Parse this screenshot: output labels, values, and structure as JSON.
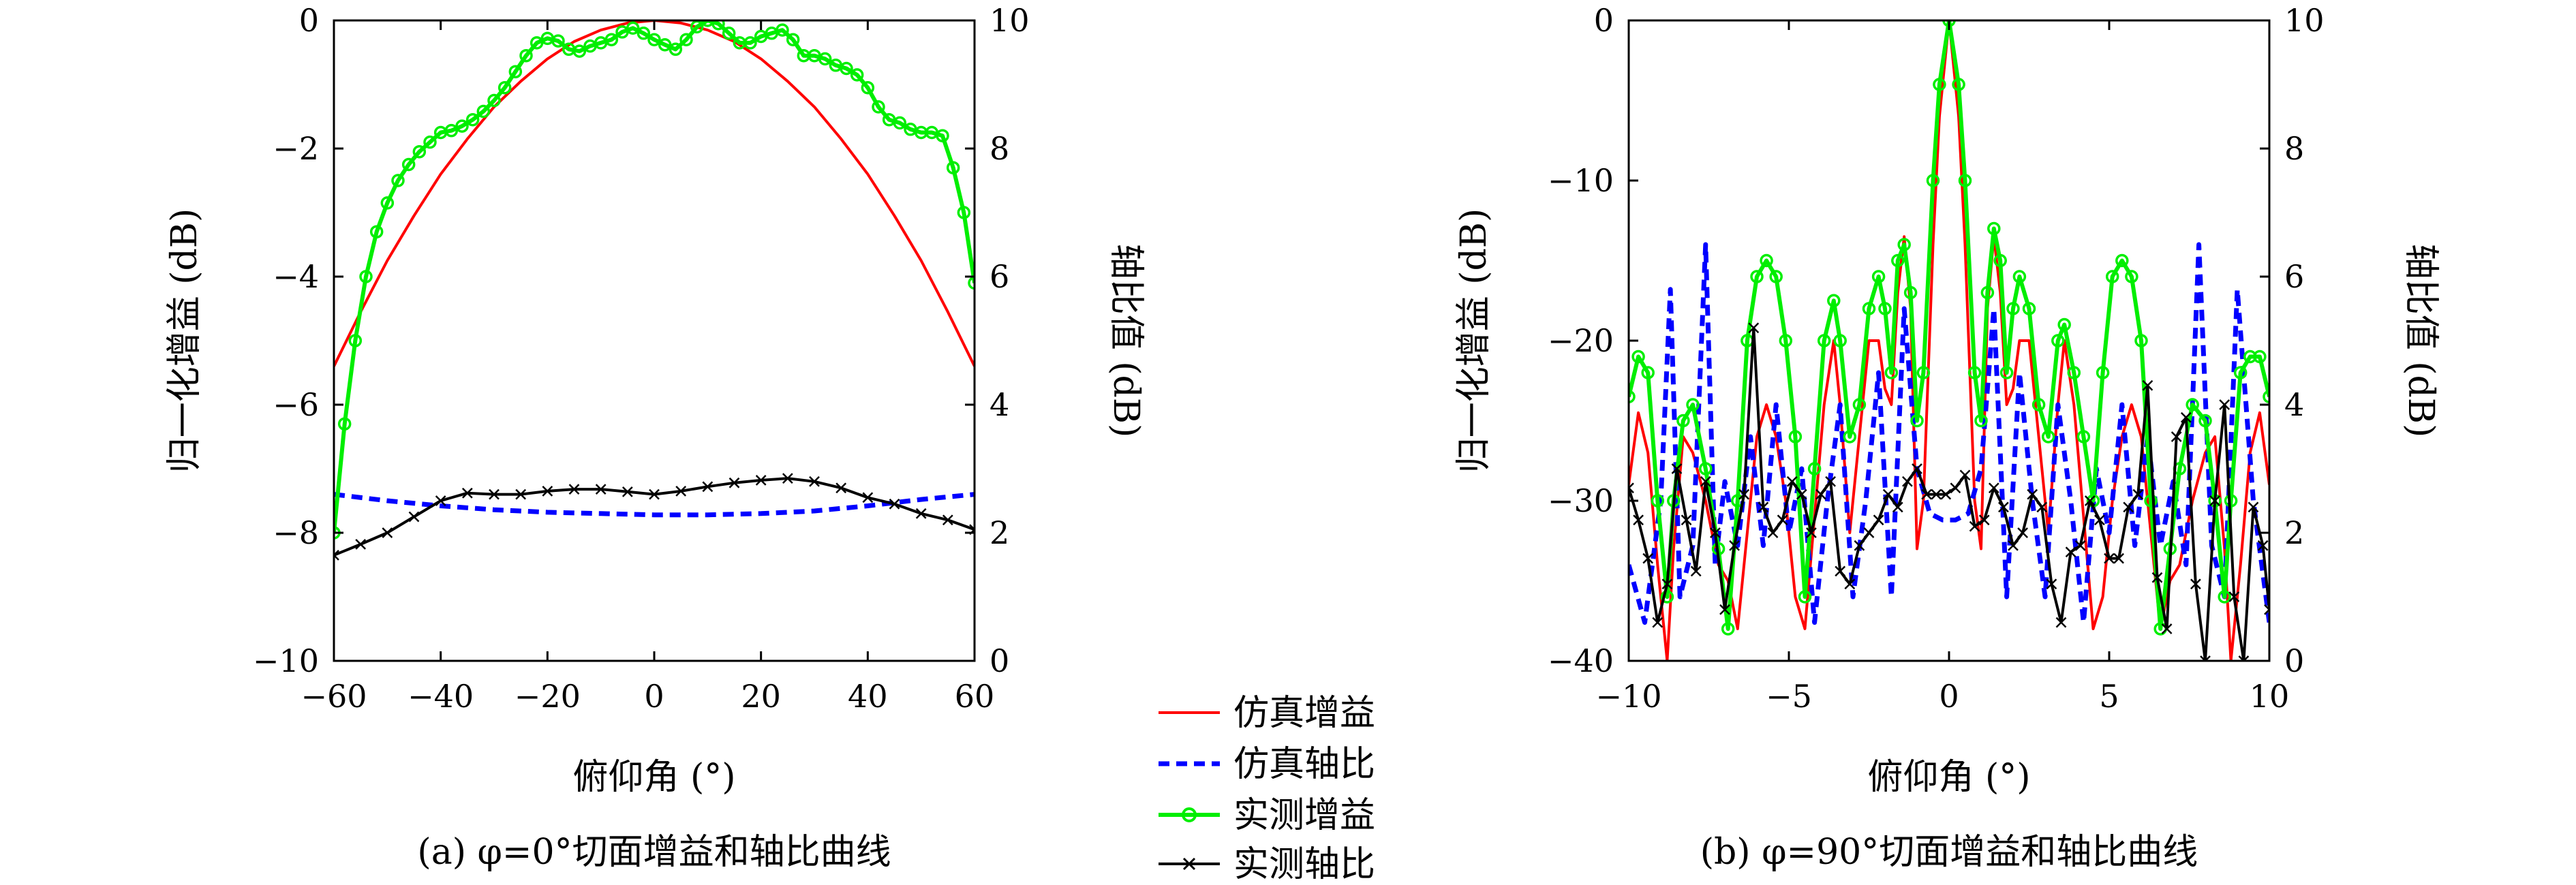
{
  "legend": {
    "items": [
      {
        "label": "仿真增益",
        "color": "#ff0000",
        "style": "solid",
        "marker": "none"
      },
      {
        "label": "仿真轴比",
        "color": "#0000ff",
        "style": "dashed",
        "marker": "none"
      },
      {
        "label": "实测增益",
        "color": "#00ee00",
        "style": "solid",
        "marker": "circle"
      },
      {
        "label": "实测轴比",
        "color": "#000000",
        "style": "solid",
        "marker": "x"
      }
    ]
  },
  "chart_data": [
    {
      "type": "line",
      "caption": "(a) φ=0°切面增益和轴比曲线",
      "xlabel": "俯仰角 (°)",
      "ylabel": "归一化增益 (dB)",
      "y2label": "轴比值 (dB)",
      "xlim": [
        -60,
        60
      ],
      "ylim": [
        -10,
        0
      ],
      "y2lim": [
        0,
        10
      ],
      "xticks": [
        "−60",
        "−40",
        "−20",
        "0",
        "20",
        "40",
        "60"
      ],
      "yticks": [
        "−10",
        "−8",
        "−6",
        "−4",
        "−2",
        "0"
      ],
      "y2ticks": [
        "0",
        "2",
        "4",
        "6",
        "8",
        "10"
      ],
      "grid": false,
      "series": [
        {
          "name": "仿真增益",
          "axis": "left",
          "x": [
            -60,
            -55,
            -50,
            -45,
            -40,
            -35,
            -30,
            -25,
            -20,
            -15,
            -10,
            -5,
            0,
            5,
            10,
            15,
            20,
            25,
            30,
            35,
            40,
            45,
            50,
            55,
            60
          ],
          "y": [
            -5.4,
            -4.55,
            -3.75,
            -3.05,
            -2.4,
            -1.85,
            -1.35,
            -0.95,
            -0.6,
            -0.33,
            -0.15,
            -0.04,
            0,
            -0.04,
            -0.15,
            -0.33,
            -0.6,
            -0.95,
            -1.35,
            -1.85,
            -2.4,
            -3.05,
            -3.75,
            -4.55,
            -5.4
          ]
        },
        {
          "name": "仿真轴比",
          "axis": "right",
          "x": [
            -60,
            -50,
            -40,
            -30,
            -20,
            -10,
            0,
            10,
            20,
            30,
            40,
            50,
            60
          ],
          "y": [
            2.6,
            2.5,
            2.42,
            2.36,
            2.32,
            2.3,
            2.28,
            2.28,
            2.3,
            2.34,
            2.42,
            2.52,
            2.6
          ]
        },
        {
          "name": "实测增益",
          "axis": "left",
          "x": [
            -60,
            -58,
            -56,
            -54,
            -52,
            -50,
            -48,
            -46,
            -44,
            -42,
            -40,
            -38,
            -36,
            -34,
            -32,
            -30,
            -28,
            -26,
            -24,
            -22,
            -20,
            -18,
            -16,
            -14,
            -12,
            -10,
            -8,
            -6,
            -4,
            -2,
            0,
            2,
            4,
            6,
            8,
            10,
            12,
            14,
            16,
            18,
            20,
            22,
            24,
            26,
            28,
            30,
            32,
            34,
            36,
            38,
            40,
            42,
            44,
            46,
            48,
            50,
            52,
            54,
            56,
            58,
            60
          ],
          "y": [
            -8.0,
            -6.3,
            -5.0,
            -4.0,
            -3.3,
            -2.85,
            -2.5,
            -2.25,
            -2.05,
            -1.9,
            -1.75,
            -1.72,
            -1.65,
            -1.55,
            -1.42,
            -1.25,
            -1.05,
            -0.8,
            -0.55,
            -0.35,
            -0.28,
            -0.32,
            -0.45,
            -0.48,
            -0.4,
            -0.35,
            -0.3,
            -0.18,
            -0.12,
            -0.2,
            -0.3,
            -0.38,
            -0.45,
            -0.3,
            -0.1,
            0.0,
            -0.05,
            -0.2,
            -0.35,
            -0.35,
            -0.25,
            -0.2,
            -0.15,
            -0.3,
            -0.55,
            -0.55,
            -0.6,
            -0.7,
            -0.75,
            -0.85,
            -1.05,
            -1.35,
            -1.55,
            -1.6,
            -1.7,
            -1.75,
            -1.75,
            -1.8,
            -2.3,
            -3.0,
            -4.1
          ]
        },
        {
          "name": "实测轴比",
          "axis": "right",
          "x": [
            -60,
            -55,
            -50,
            -45,
            -40,
            -35,
            -30,
            -25,
            -20,
            -15,
            -10,
            -5,
            0,
            5,
            10,
            15,
            20,
            25,
            30,
            35,
            40,
            45,
            50,
            55,
            60
          ],
          "y": [
            1.65,
            1.82,
            2.0,
            2.25,
            2.5,
            2.62,
            2.6,
            2.6,
            2.65,
            2.68,
            2.68,
            2.64,
            2.6,
            2.65,
            2.72,
            2.78,
            2.82,
            2.85,
            2.8,
            2.7,
            2.55,
            2.45,
            2.3,
            2.2,
            2.05
          ]
        }
      ]
    },
    {
      "type": "line",
      "caption": "(b) φ=90°切面增益和轴比曲线",
      "xlabel": "俯仰角 (°)",
      "ylabel": "归一化增益 (dB)",
      "y2label": "轴比值 (dB)",
      "xlim": [
        -10,
        10
      ],
      "ylim": [
        -40,
        0
      ],
      "y2lim": [
        0,
        10
      ],
      "xticks": [
        "−10",
        "−5",
        "0",
        "5",
        "10"
      ],
      "yticks": [
        "−40",
        "−30",
        "−20",
        "−10",
        "0"
      ],
      "y2ticks": [
        "0",
        "2",
        "4",
        "6",
        "8",
        "10"
      ],
      "grid": false,
      "series": [
        {
          "name": "仿真增益",
          "axis": "left",
          "x": [
            -10,
            -9.7,
            -9.4,
            -9.1,
            -8.8,
            -8.6,
            -8.3,
            -8.0,
            -7.6,
            -7.2,
            -6.9,
            -6.6,
            -6.3,
            -6.0,
            -5.7,
            -5.4,
            -5.1,
            -4.8,
            -4.5,
            -4.2,
            -3.9,
            -3.6,
            -3.4,
            -3.1,
            -2.8,
            -2.5,
            -2.2,
            -2.0,
            -1.8,
            -1.6,
            -1.4,
            -1.2,
            -1.0,
            -0.8,
            -0.5,
            -0.3,
            0,
            0.3,
            0.5,
            0.8,
            1.0,
            1.2,
            1.4,
            1.6,
            1.8,
            2.0,
            2.2,
            2.5,
            2.8,
            3.1,
            3.4,
            3.6,
            3.9,
            4.2,
            4.5,
            4.8,
            5.1,
            5.4,
            5.7,
            6.0,
            6.3,
            6.6,
            6.9,
            7.2,
            7.6,
            8.0,
            8.3,
            8.6,
            8.8,
            9.1,
            9.4,
            9.7,
            10
          ],
          "y": [
            -29,
            -24.5,
            -27,
            -34,
            -40,
            -33,
            -26,
            -27,
            -30,
            -34,
            -35,
            -38,
            -32,
            -26,
            -24,
            -26,
            -30,
            -36,
            -38,
            -31,
            -24,
            -20,
            -24,
            -32,
            -26,
            -20,
            -20,
            -23,
            -24,
            -17,
            -13.5,
            -18,
            -33,
            -30,
            -14,
            -6,
            0,
            -6,
            -14,
            -30,
            -33,
            -18,
            -13.5,
            -17,
            -24,
            -23,
            -20,
            -20,
            -26,
            -32,
            -24,
            -20,
            -24,
            -31,
            -38,
            -36,
            -30,
            -26,
            -24,
            -26,
            -32,
            -38,
            -35,
            -34,
            -30,
            -27,
            -26,
            -33,
            -40,
            -34,
            -27,
            -24.5,
            -29
          ]
        },
        {
          "name": "仿真轴比",
          "axis": "right",
          "x": [
            -10,
            -9.5,
            -9.0,
            -8.7,
            -8.4,
            -8.0,
            -7.6,
            -7.3,
            -7.0,
            -6.6,
            -6.2,
            -5.8,
            -5.4,
            -5.0,
            -4.6,
            -4.2,
            -3.8,
            -3.4,
            -3.0,
            -2.6,
            -2.2,
            -1.8,
            -1.4,
            -1.0,
            -0.6,
            -0.2,
            0.2,
            0.6,
            1.0,
            1.4,
            1.8,
            2.2,
            2.6,
            3.0,
            3.4,
            3.8,
            4.2,
            4.6,
            5.0,
            5.4,
            5.8,
            6.2,
            6.6,
            7.0,
            7.4,
            7.8,
            8.2,
            8.6,
            9.0,
            9.5,
            10
          ],
          "y": [
            1.5,
            0.6,
            2.5,
            5.8,
            1.0,
            1.8,
            6.5,
            1.5,
            2.8,
            1.8,
            3.5,
            1.8,
            4.0,
            2.0,
            3.0,
            0.6,
            2.5,
            4.0,
            1.0,
            2.5,
            4.5,
            1.0,
            5.5,
            3.0,
            2.3,
            2.2,
            2.2,
            2.3,
            3.0,
            5.5,
            1.0,
            4.5,
            2.5,
            1.0,
            4.0,
            2.5,
            0.6,
            3.0,
            2.0,
            4.0,
            1.8,
            3.5,
            1.8,
            2.8,
            1.5,
            6.5,
            1.8,
            1.0,
            5.8,
            2.5,
            0.6
          ]
        },
        {
          "name": "实测增益",
          "axis": "left",
          "x": [
            -10,
            -9.7,
            -9.4,
            -9.1,
            -8.8,
            -8.6,
            -8.3,
            -8.0,
            -7.6,
            -7.2,
            -6.9,
            -6.6,
            -6.3,
            -6.0,
            -5.7,
            -5.4,
            -5.1,
            -4.8,
            -4.5,
            -4.2,
            -3.9,
            -3.6,
            -3.4,
            -3.1,
            -2.8,
            -2.5,
            -2.2,
            -2.0,
            -1.8,
            -1.6,
            -1.4,
            -1.2,
            -1.0,
            -0.8,
            -0.5,
            -0.3,
            0,
            0.3,
            0.5,
            0.8,
            1.0,
            1.2,
            1.4,
            1.6,
            1.8,
            2.0,
            2.2,
            2.5,
            2.8,
            3.1,
            3.4,
            3.6,
            3.9,
            4.2,
            4.5,
            4.8,
            5.1,
            5.4,
            5.7,
            6.0,
            6.3,
            6.6,
            6.9,
            7.2,
            7.6,
            8.0,
            8.3,
            8.6,
            8.8,
            9.1,
            9.4,
            9.7,
            10
          ],
          "y": [
            -23.5,
            -21,
            -22,
            -30,
            -36,
            -30,
            -25,
            -24,
            -28,
            -33,
            -38,
            -30,
            -20,
            -16,
            -15,
            -16,
            -20,
            -26,
            -36,
            -28,
            -20,
            -17.5,
            -20,
            -26,
            -24,
            -18,
            -16,
            -18,
            -22,
            -15,
            -14,
            -17,
            -25,
            -22,
            -10,
            -4,
            0,
            -4,
            -10,
            -22,
            -25,
            -17,
            -13,
            -15,
            -22,
            -18,
            -16,
            -18,
            -24,
            -26,
            -20,
            -19,
            -22,
            -26,
            -30,
            -22,
            -16,
            -15,
            -16,
            -20,
            -30,
            -38,
            -33,
            -28,
            -24,
            -25,
            -30,
            -36,
            -30,
            -22,
            -21,
            -21,
            -23.5
          ]
        },
        {
          "name": "实测轴比",
          "axis": "right",
          "x": [
            -10,
            -9.7,
            -9.4,
            -9.1,
            -8.8,
            -8.5,
            -8.2,
            -7.9,
            -7.6,
            -7.3,
            -7.0,
            -6.7,
            -6.4,
            -6.1,
            -5.8,
            -5.5,
            -5.2,
            -4.9,
            -4.6,
            -4.3,
            -4.0,
            -3.7,
            -3.4,
            -3.1,
            -2.8,
            -2.5,
            -2.2,
            -1.9,
            -1.6,
            -1.3,
            -1.0,
            -0.7,
            -0.4,
            -0.1,
            0.2,
            0.5,
            0.8,
            1.1,
            1.4,
            1.7,
            2.0,
            2.3,
            2.6,
            2.9,
            3.2,
            3.5,
            3.8,
            4.1,
            4.4,
            4.7,
            5.0,
            5.3,
            5.6,
            5.9,
            6.2,
            6.5,
            6.8,
            7.1,
            7.4,
            7.7,
            8.0,
            8.3,
            8.6,
            8.9,
            9.2,
            9.5,
            9.8,
            10
          ],
          "y": [
            2.7,
            2.2,
            1.6,
            0.6,
            1.2,
            3.0,
            2.2,
            1.4,
            2.8,
            2.0,
            0.8,
            1.8,
            2.6,
            5.2,
            2.4,
            2.0,
            2.2,
            2.8,
            2.6,
            2.0,
            2.6,
            2.8,
            1.4,
            1.2,
            1.8,
            2.0,
            2.2,
            2.6,
            2.4,
            2.8,
            3.0,
            2.6,
            2.6,
            2.6,
            2.7,
            2.9,
            2.1,
            2.2,
            2.7,
            2.4,
            1.8,
            2.0,
            2.6,
            2.4,
            1.2,
            0.6,
            1.7,
            1.8,
            2.5,
            2.2,
            1.6,
            1.6,
            2.4,
            2.6,
            4.3,
            1.3,
            0.5,
            3.5,
            3.8,
            1.2,
            0,
            2.5,
            4.0,
            1.0,
            0,
            2.4,
            1.8,
            0.8
          ]
        }
      ]
    }
  ]
}
